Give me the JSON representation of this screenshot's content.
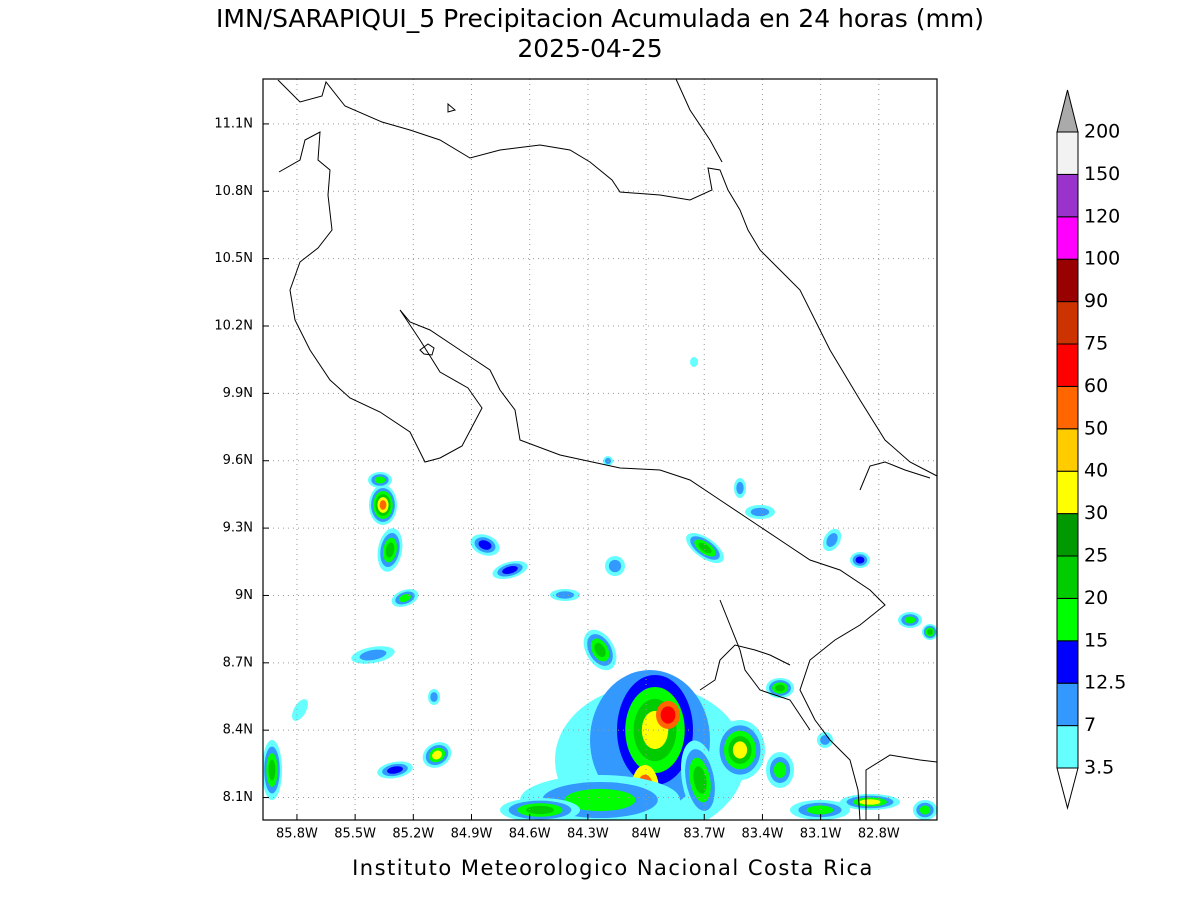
{
  "map": {
    "title": "IMN/SARAPIQUI_5 Precipitacion Acumulada en 24 horas (mm)",
    "subtitle": "2025-04-25",
    "footer": "Instituto Meteorologico Nacional Costa Rica",
    "lonlim": [
      -85.975,
      -82.5
    ],
    "latlim": [
      8.0,
      11.3
    ],
    "lon_ticks": [
      {
        "value": -85.8,
        "label": "85.8W"
      },
      {
        "value": -85.5,
        "label": "85.5W"
      },
      {
        "value": -85.2,
        "label": "85.2W"
      },
      {
        "value": -84.9,
        "label": "84.9W"
      },
      {
        "value": -84.6,
        "label": "84.6W"
      },
      {
        "value": -84.3,
        "label": "84.3W"
      },
      {
        "value": -84.0,
        "label": "84W"
      },
      {
        "value": -83.7,
        "label": "83.7W"
      },
      {
        "value": -83.4,
        "label": "83.4W"
      },
      {
        "value": -83.1,
        "label": "83.1W"
      },
      {
        "value": -82.8,
        "label": "82.8W"
      }
    ],
    "lat_ticks": [
      {
        "value": 11.1,
        "label": "11.1N"
      },
      {
        "value": 10.8,
        "label": "10.8N"
      },
      {
        "value": 10.5,
        "label": "10.5N"
      },
      {
        "value": 10.2,
        "label": "10.2N"
      },
      {
        "value": 9.9,
        "label": "9.9N"
      },
      {
        "value": 9.6,
        "label": "9.6N"
      },
      {
        "value": 9.3,
        "label": "9.3N"
      },
      {
        "value": 9.0,
        "label": "9N"
      },
      {
        "value": 8.7,
        "label": "8.7N"
      },
      {
        "value": 8.4,
        "label": "8.4N"
      },
      {
        "value": 8.1,
        "label": "8.1N"
      }
    ],
    "grid": true,
    "colorbar": {
      "levels": [
        3.5,
        7,
        12.5,
        15,
        20,
        25,
        30,
        40,
        50,
        60,
        75,
        90,
        100,
        120,
        150,
        200
      ],
      "colors": [
        "#66ffff",
        "#3399ff",
        "#0000ff",
        "#00ff00",
        "#00cc00",
        "#009900",
        "#ffff00",
        "#ffcc00",
        "#ff6600",
        "#ff0000",
        "#cc3300",
        "#990000",
        "#ff00ff",
        "#9933cc",
        "#f2f2f2"
      ],
      "under_color": "#ffffff",
      "over_color": "#aaaaaa"
    }
  }
}
